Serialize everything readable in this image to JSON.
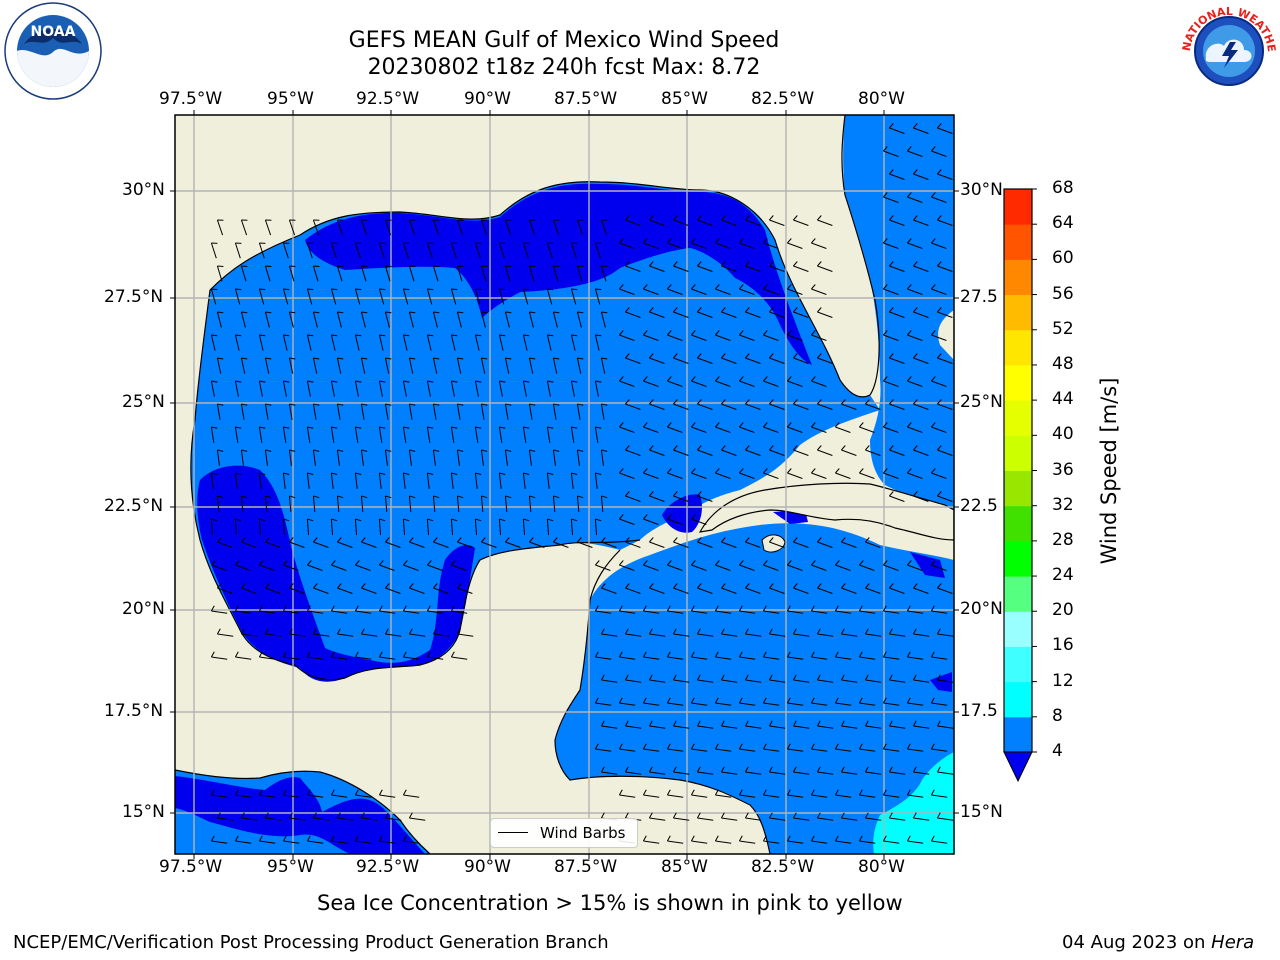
{
  "title": {
    "line1": "GEFS MEAN Gulf of Mexico Wind Speed",
    "line2": "20230802 t18z 240h fcst   Max: 8.72"
  },
  "lon_ticks": [
    "97.5°W",
    "95°W",
    "92.5°W",
    "90°W",
    "87.5°W",
    "85°W",
    "82.5°W",
    "80°W"
  ],
  "lat_ticks": [
    "30°N",
    "27.5°N",
    "25°N",
    "22.5°N",
    "20°N",
    "17.5°N",
    "15°N"
  ],
  "lat_ticks_right": [
    "30°N",
    "27.5",
    "25°N",
    "22.5",
    "20°N",
    "17.5",
    "15°N"
  ],
  "legend": {
    "label": "Wind Barbs"
  },
  "colorbar": {
    "title": "Wind Speed [m/s]",
    "levels": [
      "4",
      "8",
      "12",
      "16",
      "20",
      "24",
      "28",
      "32",
      "36",
      "40",
      "44",
      "48",
      "52",
      "56",
      "60",
      "64",
      "68"
    ],
    "colors": [
      "#0080ff",
      "#00ffff",
      "#40ffff",
      "#99ffff",
      "#55ff80",
      "#00ff00",
      "#40e000",
      "#99e600",
      "#ccff00",
      "#e6ff00",
      "#ffff00",
      "#ffe600",
      "#ffbb00",
      "#ff8800",
      "#ff5500",
      "#ff2a00"
    ],
    "under_color": "#0000ee"
  },
  "colors": {
    "land": "#efefdb",
    "ocean_low": "#0000ee",
    "ocean_mid": "#0080ff",
    "ocean_high": "#00ffff",
    "grid": "#b4b4b4"
  },
  "subtitle": "Sea Ice Concentration > 15% is shown in pink to yellow",
  "footer": {
    "left": "NCEP/EMC/Verification Post Processing Product Generation Branch",
    "date": "04 Aug 2023 on ",
    "machine": "Hera"
  },
  "logos": {
    "left_name": "noaa-logo",
    "left_text": "NOAA",
    "right_name": "nws-logo",
    "right_text": "NATIONAL WEATHER SERVICE"
  }
}
